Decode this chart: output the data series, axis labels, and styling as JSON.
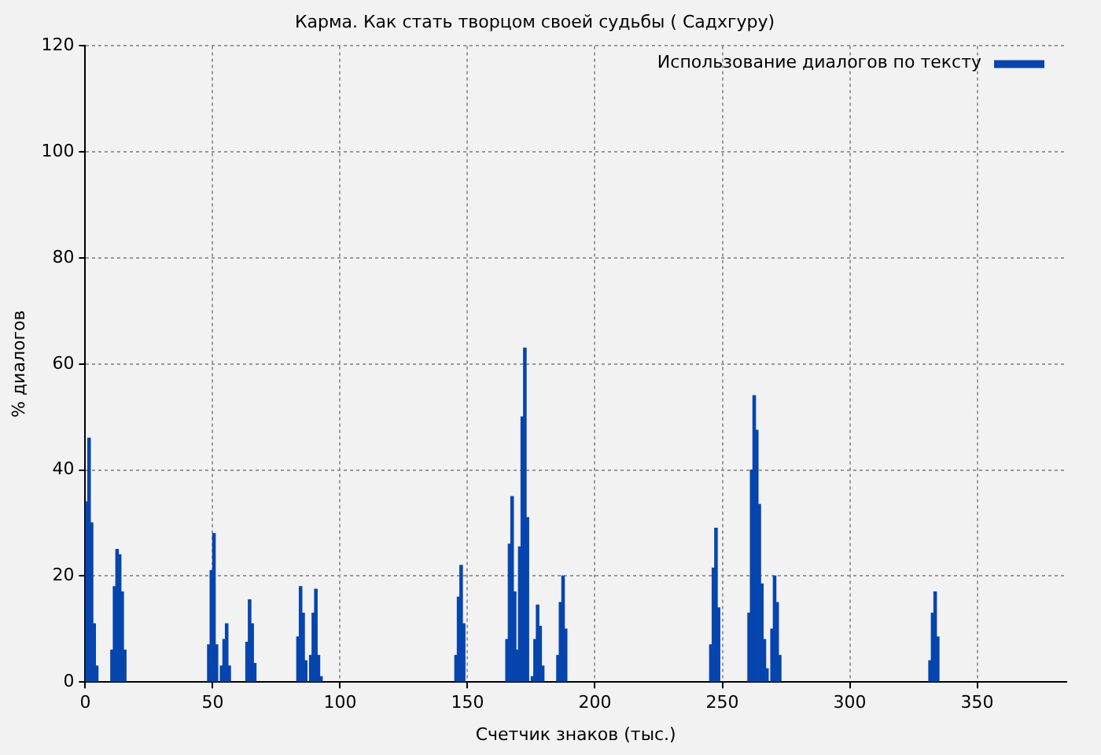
{
  "chart_data": {
    "type": "bar",
    "title": "Карма. Как стать творцом своей судьбы ( Садхгуру)",
    "xlabel": "Счетчик знаков (тыс.)",
    "ylabel": "% диалогов",
    "x": [
      0.5,
      1.5,
      2.5,
      3.5,
      4.5,
      10.5,
      11.5,
      12.5,
      13.5,
      14.5,
      15.5,
      48.5,
      49.5,
      50.5,
      51.5,
      53.5,
      54.5,
      55.5,
      56.5,
      63.5,
      64.5,
      65.5,
      66.5,
      83.5,
      84.5,
      85.5,
      86.5,
      88.5,
      89.5,
      90.5,
      91.5,
      92.5,
      145.5,
      146.5,
      147.5,
      148.5,
      165.5,
      166.5,
      167.5,
      168.5,
      169.5,
      170.5,
      171.5,
      172.5,
      173.5,
      175.5,
      176.5,
      177.5,
      178.5,
      179.5,
      185.5,
      186.5,
      187.5,
      188.5,
      245.5,
      246.5,
      247.5,
      248.5,
      260.5,
      261.5,
      262.5,
      263.5,
      264.5,
      265.5,
      266.5,
      267.5,
      269.5,
      270.5,
      271.5,
      272.5,
      331.5,
      332.5,
      333.5,
      334.5
    ],
    "series": [
      {
        "name": "Использование диалогов по тексту",
        "color": "#0645ad",
        "values": [
          34,
          46,
          30,
          11,
          3,
          6,
          18,
          25,
          24,
          17,
          6,
          7,
          21,
          28,
          7,
          3,
          8,
          11,
          3,
          7.5,
          15.5,
          11,
          3.5,
          8.5,
          18,
          13,
          4,
          5,
          13,
          17.5,
          5,
          1,
          5,
          16,
          22,
          11,
          8,
          26,
          35,
          17,
          6,
          25.5,
          50,
          63,
          31,
          1,
          8,
          14.5,
          10.5,
          3,
          5,
          15,
          20,
          10,
          7,
          21.5,
          29,
          14,
          13,
          40,
          54,
          47.5,
          33.5,
          18.5,
          8,
          2.5,
          10,
          20,
          15,
          5,
          4,
          13,
          17,
          8.5
        ]
      }
    ],
    "xlim": [
      0,
      385
    ],
    "xticks": [
      0,
      50,
      100,
      150,
      200,
      250,
      300,
      350
    ],
    "ylim": [
      0,
      120
    ],
    "yticks": [
      0,
      20,
      40,
      60,
      80,
      100,
      120
    ],
    "grid": true,
    "legend": "top right"
  }
}
